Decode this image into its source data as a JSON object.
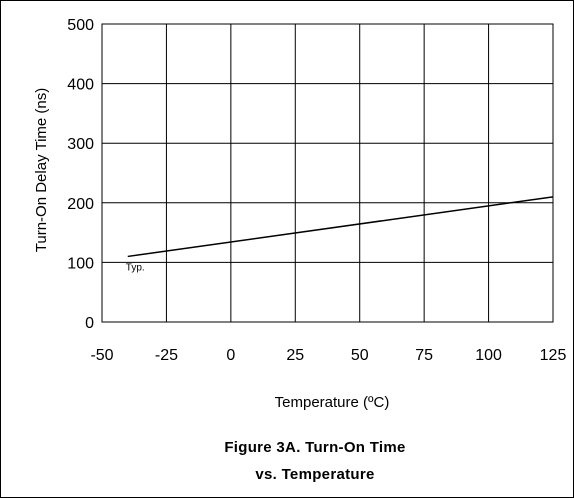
{
  "chart_data": {
    "type": "line",
    "xlabel": "Temperature (ºC)",
    "ylabel": "Turn-On Delay Time (ns)",
    "xlim": [
      -50,
      125
    ],
    "ylim": [
      0,
      500
    ],
    "xticks": [
      -50,
      -25,
      0,
      25,
      50,
      75,
      100,
      125
    ],
    "yticks": [
      0,
      100,
      200,
      300,
      400,
      500
    ],
    "grid": true,
    "series": [
      {
        "name": "Typ.",
        "x": [
          -40,
          125
        ],
        "y": [
          110,
          210
        ]
      }
    ],
    "annotations": [
      {
        "text": "Typ.",
        "x": -40,
        "y": 100
      }
    ],
    "caption_line1": "Figure 3A. Turn-On Time",
    "caption_line2": "vs. Temperature"
  }
}
